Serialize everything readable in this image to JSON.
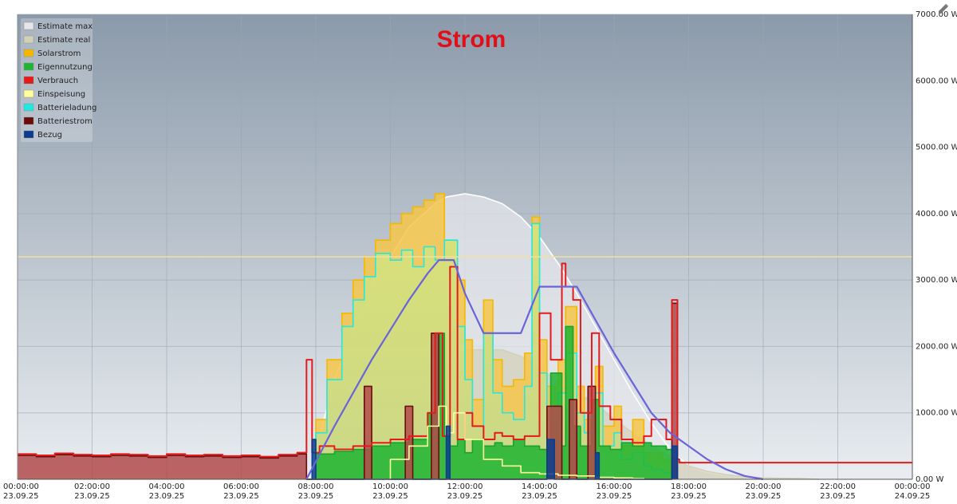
{
  "chart_data": {
    "type": "area",
    "title": "Strom",
    "legend_position": "top-left",
    "grid": true,
    "x_unit": "hours",
    "xlim": [
      0,
      24
    ],
    "ylim": [
      0,
      7000
    ],
    "x_ticks": [
      {
        "t": 0,
        "time": "00:00:00",
        "date": "23.09.25"
      },
      {
        "t": 2,
        "time": "02:00:00",
        "date": "23.09.25"
      },
      {
        "t": 4,
        "time": "04:00:00",
        "date": "23.09.25"
      },
      {
        "t": 6,
        "time": "06:00:00",
        "date": "23.09.25"
      },
      {
        "t": 8,
        "time": "08:00:00",
        "date": "23.09.25"
      },
      {
        "t": 10,
        "time": "10:00:00",
        "date": "23.09.25"
      },
      {
        "t": 12,
        "time": "12:00:00",
        "date": "23.09.25"
      },
      {
        "t": 14,
        "time": "14:00:00",
        "date": "23.09.25"
      },
      {
        "t": 16,
        "time": "16:00:00",
        "date": "23.09.25"
      },
      {
        "t": 18,
        "time": "18:00:00",
        "date": "23.09.25"
      },
      {
        "t": 20,
        "time": "20:00:00",
        "date": "23.09.25"
      },
      {
        "t": 22,
        "time": "22:00:00",
        "date": "23.09.25"
      },
      {
        "t": 24,
        "time": "00:00:00",
        "date": "24.09.25"
      }
    ],
    "y_ticks": [
      {
        "v": 0,
        "label": "0.00 W"
      },
      {
        "v": 1000,
        "label": "1000.00 W"
      },
      {
        "v": 2000,
        "label": "2000.00 W"
      },
      {
        "v": 3000,
        "label": "3000.00 W"
      },
      {
        "v": 4000,
        "label": "4000.00 W"
      },
      {
        "v": 5000,
        "label": "5000.00 W"
      },
      {
        "v": 6000,
        "label": "6000.00 W"
      },
      {
        "v": 7000,
        "label": "7000.00 W"
      }
    ],
    "reference_lines": [
      {
        "y": 3350,
        "color": "#f2e0a0"
      }
    ],
    "series": [
      {
        "name": "Estimate max",
        "color": "#ffffff",
        "fill": "#e4e6e9",
        "kind": "area",
        "x": [
          7.8,
          8.5,
          9.5,
          10.5,
          11.2,
          11.5,
          12.0,
          12.5,
          13.0,
          13.5,
          14.0,
          14.5,
          15.0,
          15.5,
          16.0,
          16.5,
          17.0,
          17.5,
          18.0,
          18.5,
          19.0,
          19.5,
          19.9
        ],
        "y": [
          0,
          1500,
          2900,
          3800,
          4150,
          4250,
          4300,
          4250,
          4150,
          3950,
          3650,
          3250,
          2800,
          2300,
          1800,
          1300,
          850,
          450,
          200,
          100,
          60,
          30,
          0
        ]
      },
      {
        "name": "Estimate real",
        "color": "#d3d0b8",
        "fill": "#d3d0b8",
        "kind": "area",
        "x": [
          9.0,
          9.8,
          10.5,
          11.0,
          11.5,
          12.0,
          12.5,
          13.0,
          13.5,
          14.0,
          14.5,
          15.0,
          15.5,
          16.0,
          16.5,
          17.0,
          17.5,
          18.0,
          18.5,
          19.0,
          19.5,
          20.0,
          21.0,
          21.5
        ],
        "y": [
          0,
          400,
          1000,
          1500,
          1800,
          1950,
          1950,
          1950,
          1850,
          1700,
          1450,
          1300,
          1150,
          900,
          700,
          500,
          350,
          200,
          120,
          70,
          40,
          20,
          10,
          0
        ]
      },
      {
        "name": "Solarstrom",
        "color": "#f5b800",
        "fill": "#f5c64a",
        "kind": "step",
        "x": [
          7.75,
          8.0,
          8.3,
          8.7,
          9.0,
          9.3,
          9.6,
          10.0,
          10.3,
          10.6,
          10.9,
          11.2,
          11.45,
          11.8,
          12.0,
          12.2,
          12.5,
          12.75,
          13.0,
          13.3,
          13.6,
          13.8,
          14.0,
          14.2,
          14.5,
          14.7,
          15.0,
          15.2,
          15.5,
          15.7,
          16.0,
          16.2,
          16.5,
          16.8,
          17.0,
          17.3,
          17.55,
          17.65
        ],
        "y": [
          0,
          900,
          1800,
          2500,
          3000,
          3350,
          3600,
          3850,
          4000,
          4100,
          4200,
          4300,
          3600,
          3000,
          2100,
          1200,
          2700,
          1800,
          1400,
          1500,
          1900,
          3950,
          2100,
          1400,
          1800,
          2600,
          1400,
          900,
          1700,
          800,
          1100,
          500,
          900,
          400,
          400,
          300,
          200,
          0
        ]
      },
      {
        "name": "Eigennutzung",
        "color": "#1aa32a",
        "fill": "#1fb533",
        "kind": "step",
        "x": [
          7.75,
          8.0,
          8.5,
          9.0,
          9.5,
          10.0,
          10.5,
          11.0,
          11.2,
          11.45,
          11.6,
          11.8,
          12.0,
          12.2,
          12.5,
          12.8,
          13.0,
          13.3,
          13.6,
          14.0,
          14.3,
          14.6,
          14.7,
          14.9,
          15.1,
          15.4,
          15.6,
          15.9,
          16.2,
          16.5,
          16.8,
          17.0,
          17.4,
          17.55
        ],
        "y": [
          0,
          380,
          420,
          450,
          500,
          550,
          600,
          1000,
          2200,
          650,
          500,
          600,
          400,
          600,
          500,
          550,
          500,
          600,
          500,
          450,
          1600,
          500,
          2300,
          800,
          500,
          1200,
          500,
          450,
          550,
          500,
          550,
          500,
          450,
          0
        ]
      },
      {
        "name": "Verbrauch",
        "color": "#e31b1b",
        "fill": "none",
        "kind": "step",
        "x": [
          0,
          0.5,
          1.0,
          1.5,
          2.0,
          2.5,
          3.0,
          3.5,
          4.0,
          4.5,
          5.0,
          5.5,
          6.0,
          6.5,
          7.0,
          7.5,
          7.75,
          7.9,
          8.1,
          8.5,
          9.0,
          9.5,
          10.0,
          10.5,
          11.0,
          11.2,
          11.4,
          11.6,
          11.8,
          12.0,
          12.2,
          12.5,
          12.8,
          13.0,
          13.3,
          13.6,
          14.0,
          14.3,
          14.6,
          14.7,
          14.9,
          15.1,
          15.4,
          15.6,
          15.9,
          16.2,
          16.5,
          16.8,
          17.0,
          17.4,
          17.55,
          17.7,
          17.75,
          24.0
        ],
        "y": [
          380,
          360,
          390,
          370,
          360,
          380,
          370,
          350,
          380,
          360,
          370,
          350,
          360,
          340,
          370,
          400,
          1800,
          400,
          500,
          450,
          500,
          550,
          600,
          650,
          1000,
          2200,
          650,
          3200,
          600,
          1000,
          800,
          600,
          700,
          650,
          600,
          650,
          2500,
          1800,
          3250,
          2900,
          2700,
          1000,
          2200,
          1100,
          900,
          600,
          550,
          650,
          900,
          600,
          2700,
          300,
          250,
          250
        ]
      },
      {
        "name": "Einspeisung",
        "color": "#ffff9c",
        "fill": "none",
        "kind": "step",
        "x": [
          9.5,
          10.0,
          10.5,
          11.0,
          11.3,
          11.5,
          11.7,
          12.0,
          12.5,
          13.0,
          13.5,
          14.0,
          14.5,
          15.0,
          15.5,
          16.0,
          16.5,
          16.8
        ],
        "y": [
          0,
          300,
          500,
          800,
          1100,
          700,
          1000,
          600,
          300,
          200,
          100,
          80,
          60,
          50,
          30,
          20,
          10,
          0
        ]
      },
      {
        "name": "Batterieladung",
        "color": "#22e8e0",
        "fill": "none",
        "kind": "step",
        "x": [
          7.75,
          8.0,
          8.3,
          8.7,
          9.0,
          9.3,
          9.6,
          10.0,
          10.3,
          10.6,
          10.9,
          11.2,
          11.45,
          11.8,
          12.0,
          12.2,
          12.5,
          12.75,
          13.0,
          13.3,
          13.6,
          13.8,
          14.0,
          14.2,
          14.5,
          14.7,
          15.0,
          15.2,
          15.5,
          15.7,
          16.0,
          16.2,
          16.5,
          16.8,
          17.0,
          17.3,
          17.55
        ],
        "y": [
          0,
          700,
          1500,
          2300,
          2700,
          3050,
          3400,
          3300,
          3450,
          3200,
          3500,
          3300,
          3600,
          2300,
          1500,
          800,
          2200,
          1300,
          1000,
          900,
          1400,
          3850,
          1600,
          900,
          1300,
          1900,
          1000,
          700,
          1300,
          500,
          700,
          300,
          400,
          200,
          150,
          100,
          0
        ]
      },
      {
        "name": "Batteriestrom",
        "color": "#6b0c0c",
        "fill": "#b14b4b",
        "kind": "step",
        "x": [
          0,
          0.5,
          1.0,
          1.5,
          2.0,
          2.5,
          3.0,
          3.5,
          4.0,
          4.5,
          5.0,
          5.5,
          6.0,
          6.5,
          7.0,
          7.5,
          7.75,
          8.0,
          9.0,
          9.3,
          9.5,
          10.0,
          10.4,
          10.6,
          11.0,
          11.1,
          11.3,
          11.5,
          11.8,
          12.0,
          13.0,
          14.0,
          14.2,
          14.6,
          14.8,
          15.0,
          15.3,
          15.5,
          15.8,
          16.0,
          17.5,
          17.55,
          17.7
        ],
        "y": [
          360,
          340,
          370,
          350,
          340,
          360,
          350,
          330,
          360,
          340,
          350,
          330,
          340,
          320,
          350,
          380,
          0,
          0,
          0,
          1400,
          0,
          0,
          1100,
          0,
          0,
          2200,
          0,
          0,
          0,
          0,
          0,
          0,
          1100,
          0,
          1200,
          0,
          1400,
          0,
          0,
          0,
          0,
          2650,
          0
        ]
      },
      {
        "name": "Bezug",
        "color": "#0b3d8c",
        "fill": "#0b3d8c",
        "kind": "step",
        "x": [
          7.75,
          7.9,
          8.0,
          11.4,
          11.5,
          11.6,
          14.0,
          14.2,
          14.4,
          15.4,
          15.5,
          15.6,
          17.5,
          17.55,
          17.7
        ],
        "y": [
          0,
          600,
          0,
          0,
          800,
          0,
          0,
          600,
          0,
          0,
          400,
          0,
          0,
          500,
          0
        ]
      }
    ],
    "overlay_line": {
      "color": "#6a63d9",
      "x": [
        7.75,
        8.5,
        9.5,
        10.5,
        11.0,
        11.3,
        11.7,
        12.0,
        12.5,
        13.0,
        13.5,
        14.0,
        14.5,
        15.0,
        15.5,
        16.0,
        16.5,
        17.0,
        17.5,
        18.0,
        18.5,
        19.0,
        19.5,
        20.0
      ],
      "y": [
        0,
        800,
        1800,
        2700,
        3100,
        3300,
        3300,
        2800,
        2200,
        2200,
        2200,
        2900,
        2900,
        2900,
        2400,
        1900,
        1450,
        1000,
        700,
        500,
        300,
        150,
        50,
        0
      ]
    }
  }
}
